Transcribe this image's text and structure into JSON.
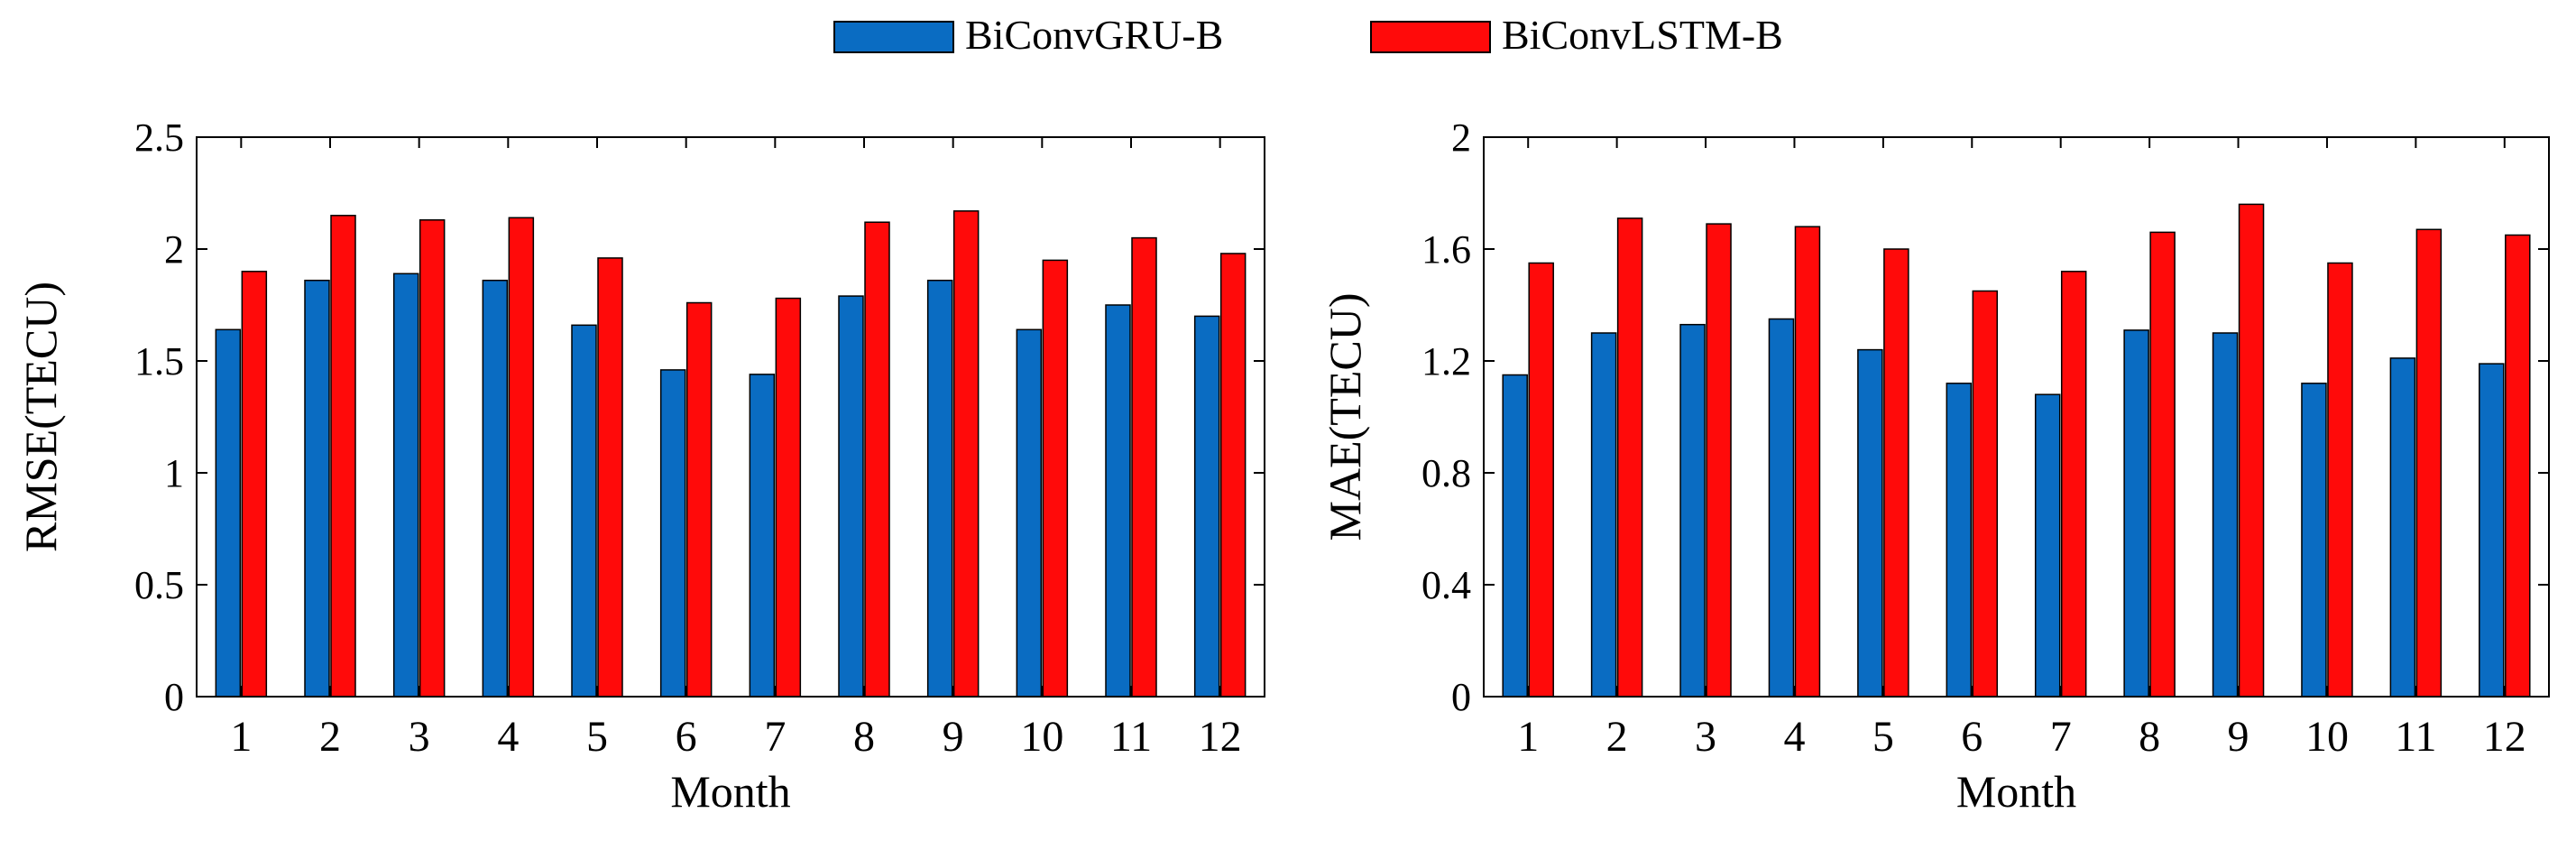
{
  "legend": {
    "items": [
      {
        "label": "BiConvGRU-B",
        "color": "#0a6cc2"
      },
      {
        "label": "BiConvLSTM-B",
        "color": "#ff0a0a"
      }
    ]
  },
  "colors": {
    "series_a": "#0a6cc2",
    "series_b": "#ff0a0a",
    "axis": "#000000"
  },
  "chart_data": [
    {
      "type": "bar",
      "title": "",
      "xlabel": "Month",
      "ylabel": "RMSE(TECU)",
      "categories": [
        "1",
        "2",
        "3",
        "4",
        "5",
        "6",
        "7",
        "8",
        "9",
        "10",
        "11",
        "12"
      ],
      "ylim": [
        0,
        2.5
      ],
      "yticks": [
        0,
        0.5,
        1,
        1.5,
        2,
        2.5
      ],
      "ytick_labels": [
        "0",
        "0.5",
        "1",
        "1.5",
        "2",
        "2.5"
      ],
      "series": [
        {
          "name": "BiConvGRU-B",
          "values": [
            1.64,
            1.86,
            1.89,
            1.86,
            1.66,
            1.46,
            1.44,
            1.79,
            1.86,
            1.64,
            1.75,
            1.7
          ]
        },
        {
          "name": "BiConvLSTM-B",
          "values": [
            1.9,
            2.15,
            2.13,
            2.14,
            1.96,
            1.76,
            1.78,
            2.12,
            2.17,
            1.95,
            2.05,
            1.98
          ]
        }
      ]
    },
    {
      "type": "bar",
      "title": "",
      "xlabel": "Month",
      "ylabel": "MAE(TECU)",
      "categories": [
        "1",
        "2",
        "3",
        "4",
        "5",
        "6",
        "7",
        "8",
        "9",
        "10",
        "11",
        "12"
      ],
      "ylim": [
        0,
        2
      ],
      "yticks": [
        0,
        0.4,
        0.8,
        1.2,
        1.6,
        2
      ],
      "ytick_labels": [
        "0",
        "0.4",
        "0.8",
        "1.2",
        "1.6",
        "2"
      ],
      "series": [
        {
          "name": "BiConvGRU-B",
          "values": [
            1.15,
            1.3,
            1.33,
            1.35,
            1.24,
            1.12,
            1.08,
            1.31,
            1.3,
            1.12,
            1.21,
            1.19
          ]
        },
        {
          "name": "BiConvLSTM-B",
          "values": [
            1.55,
            1.71,
            1.69,
            1.68,
            1.6,
            1.45,
            1.52,
            1.66,
            1.76,
            1.55,
            1.67,
            1.65
          ]
        }
      ]
    }
  ]
}
